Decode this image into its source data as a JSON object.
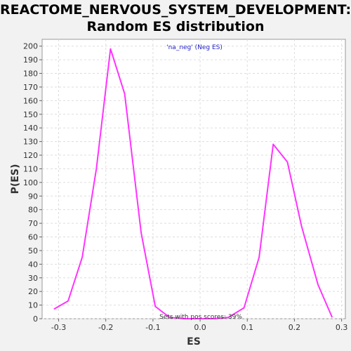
{
  "chart_data": {
    "type": "line",
    "title": [
      "REACTOME_NERVOUS_SYSTEM_DEVELOPMENT:",
      "Random ES distribution"
    ],
    "xlabel": "ES",
    "ylabel": "P(ES)",
    "legend": "'na_neg' (Neg ES)",
    "legend_position": "top-center",
    "annotation": "Sets with pos scores: 39%",
    "grid": true,
    "xlim": [
      -0.335,
      0.308
    ],
    "ylim": [
      0,
      205
    ],
    "xticks": [
      -0.3,
      -0.2,
      -0.1,
      0.0,
      0.1,
      0.2,
      0.3
    ],
    "xtick_labels": [
      "-0.3",
      "-0.2",
      "-0.1",
      "0.0",
      "0.1",
      "0.2",
      "0.3"
    ],
    "yticks": [
      0,
      10,
      20,
      30,
      40,
      50,
      60,
      70,
      80,
      90,
      100,
      110,
      120,
      130,
      140,
      150,
      160,
      170,
      180,
      190,
      200
    ],
    "series": [
      {
        "name": "'na_neg' (Neg ES)",
        "color": "#ff33ff",
        "x": [
          -0.31,
          -0.28,
          -0.25,
          -0.22,
          -0.19,
          -0.16,
          -0.125,
          -0.095,
          -0.065,
          -0.035,
          -0.005,
          0.03,
          0.06,
          0.093,
          0.125,
          0.155,
          0.185,
          0.215,
          0.25,
          0.28
        ],
        "y": [
          7,
          13,
          45,
          110,
          198,
          165,
          63,
          9,
          1,
          0,
          0,
          0,
          1,
          8,
          45,
          128,
          115,
          68,
          25,
          1
        ]
      }
    ]
  }
}
